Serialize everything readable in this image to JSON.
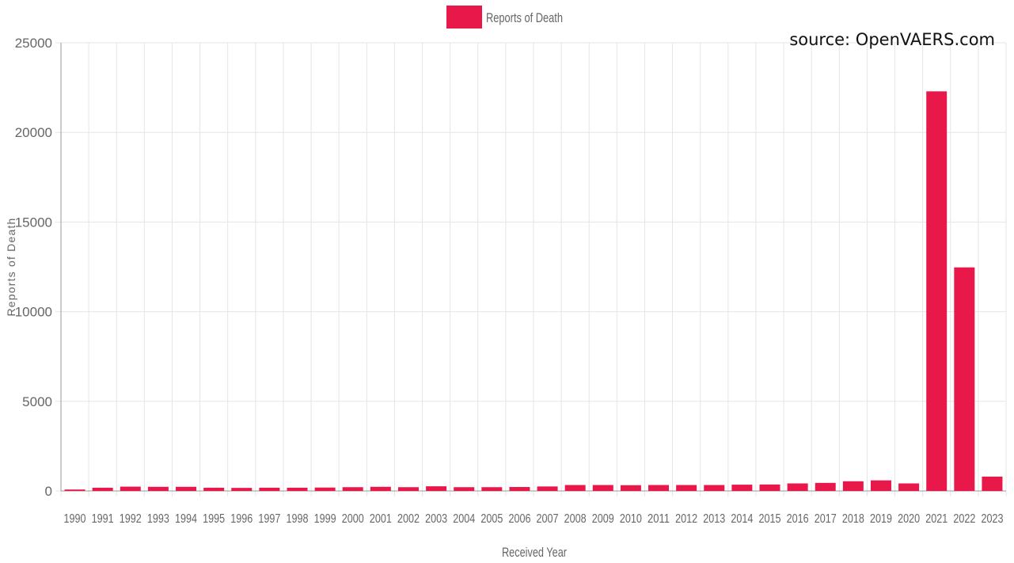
{
  "source_note": "source: OpenVAERS.com",
  "colors": {
    "bar": "#e8194a",
    "grid": "#e5e5e5",
    "axis": "#9a9a9a",
    "text": "#666666"
  },
  "chart_data": {
    "type": "bar",
    "legend": {
      "label": "Reports of Death",
      "position": "top-center"
    },
    "xlabel": "Received Year",
    "ylabel": "Reports of Death",
    "ylim": [
      0,
      25000
    ],
    "yticks": [
      0,
      5000,
      10000,
      15000,
      20000,
      25000
    ],
    "ytick_labels": [
      "0",
      "5000",
      "10000",
      "15000",
      "20000",
      "25000"
    ],
    "grid": true,
    "categories": [
      "1990",
      "1991",
      "1992",
      "1993",
      "1994",
      "1995",
      "1996",
      "1997",
      "1998",
      "1999",
      "2000",
      "2001",
      "2002",
      "2003",
      "2004",
      "2005",
      "2006",
      "2007",
      "2008",
      "2009",
      "2010",
      "2011",
      "2012",
      "2013",
      "2014",
      "2015",
      "2016",
      "2017",
      "2018",
      "2019",
      "2020",
      "2021",
      "2022",
      "2023"
    ],
    "series": [
      {
        "name": "Reports of Death",
        "values": [
          80,
          180,
          240,
          230,
          230,
          180,
          170,
          180,
          180,
          190,
          210,
          230,
          210,
          260,
          210,
          210,
          220,
          250,
          330,
          330,
          320,
          330,
          330,
          330,
          350,
          360,
          420,
          450,
          540,
          590,
          420,
          22290,
          12470,
          800
        ]
      }
    ]
  }
}
